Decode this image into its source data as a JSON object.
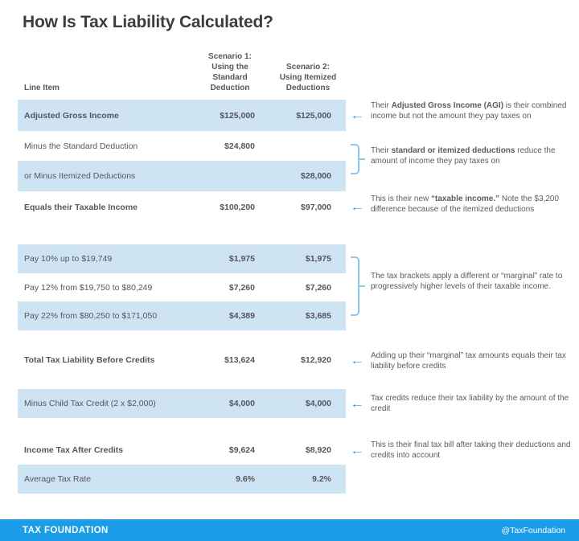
{
  "title": "How Is Tax Liability Calculated?",
  "table": {
    "headers": {
      "line_item": "Line Item",
      "scenario1": "Scenario 1:\nUsing the\nStandard\nDeduction",
      "scenario2": "Scenario 2:\nUsing Itemized\nDeductions"
    }
  },
  "chart_data": {
    "type": "table",
    "title": "How Is Tax Liability Calculated?",
    "columns": [
      "Line Item",
      "Scenario 1: Using the Standard Deduction",
      "Scenario 2: Using Itemized Deductions"
    ],
    "rows": [
      {
        "label": "Adjusted Gross Income",
        "scenario1": "$125,000",
        "scenario2": "$125,000",
        "highlighted": true
      },
      {
        "label": "Minus the Standard Deduction",
        "scenario1": "$24,800",
        "scenario2": "",
        "highlighted": false
      },
      {
        "label": "or Minus Itemized Deductions",
        "scenario1": "",
        "scenario2": "$28,000",
        "highlighted": true
      },
      {
        "label": "Equals their Taxable Income",
        "scenario1": "$100,200",
        "scenario2": "$97,000",
        "highlighted": false
      },
      {
        "label": "Pay 10% up to $19,749",
        "scenario1": "$1,975",
        "scenario2": "$1,975",
        "highlighted": true
      },
      {
        "label": "Pay 12% from $19,750 to $80,249",
        "scenario1": "$7,260",
        "scenario2": "$7,260",
        "highlighted": false
      },
      {
        "label": "Pay 22% from $80,250 to $171,050",
        "scenario1": "$4,389",
        "scenario2": "$3,685",
        "highlighted": true
      },
      {
        "label": "Total Tax Liability Before Credits",
        "scenario1": "$13,624",
        "scenario2": "$12,920",
        "highlighted": false
      },
      {
        "label": "Minus Child Tax Credit (2 x $2,000)",
        "scenario1": "$4,000",
        "scenario2": "$4,000",
        "highlighted": true
      },
      {
        "label": "Income Tax After Credits",
        "scenario1": "$9,624",
        "scenario2": "$8,920",
        "highlighted": false
      },
      {
        "label": "Average Tax Rate",
        "scenario1": "9.6%",
        "scenario2": "9.2%",
        "highlighted": true
      }
    ]
  },
  "annotations": [
    {
      "pre": "Their ",
      "bold": "Adjusted Gross Income (AGI)",
      "post": " is their combined income but not the amount they pay taxes on"
    },
    {
      "pre": "Their ",
      "bold": "standard or itemized deductions",
      "post": " reduce the amount of income they pay taxes on"
    },
    {
      "pre": "This is their new ",
      "bold": "“taxable income.”",
      "post": " Note the $3,200 difference because of the itemized deductions"
    },
    {
      "pre": "The tax brackets apply a different or “marginal” rate to progressively higher levels of their taxable income.",
      "bold": "",
      "post": ""
    },
    {
      "pre": "Adding up their “marginal” tax amounts equals their tax liability before credits",
      "bold": "",
      "post": ""
    },
    {
      "pre": "Tax credits reduce their tax liability by the amount of the credit",
      "bold": "",
      "post": ""
    },
    {
      "pre": "This is their final tax bill after taking their deductions and credits into account",
      "bold": "",
      "post": ""
    }
  ],
  "icons": {
    "arrow_left": "←"
  },
  "footer": {
    "brand": "TAX FOUNDATION",
    "handle": "@TaxFoundation"
  },
  "colors": {
    "row_highlight": "#cfe4f2",
    "accent_arrow": "#2f97d4",
    "bracket_blue": "#8fc8e8",
    "footer_blue": "#1b9ce9",
    "text_gray": "#54575a"
  }
}
